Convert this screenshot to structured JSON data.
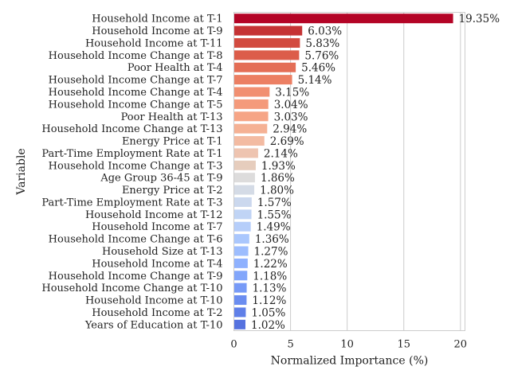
{
  "chart_data": {
    "type": "bar",
    "orientation": "horizontal",
    "xlabel": "Normalized Importance (%)",
    "ylabel": "Variable",
    "xlim": [
      0,
      20.4
    ],
    "xticks": [
      0,
      5,
      10,
      15,
      20
    ],
    "grid": "vertical",
    "colormap": "coolwarm (red for highest, blue for lowest)",
    "categories": [
      "Household Income at T-1",
      "Household Income at T-9",
      "Household Income at T-11",
      "Household Income Change at T-8",
      "Poor Health at T-4",
      "Household Income Change at T-7",
      "Household Income Change at T-4",
      "Household Income Change at T-5",
      "Poor Health at T-13",
      "Household Income Change at T-13",
      "Energy Price at T-1",
      "Part-Time Employment Rate at T-1",
      "Household Income Change at T-3",
      "Age Group 36-45 at T-9",
      "Energy Price at T-2",
      "Part-Time Employment Rate at T-3",
      "Household Income at T-12",
      "Household Income at T-7",
      "Household Income Change at T-6",
      "Household Size at T-13",
      "Household Income at T-4",
      "Household Income Change at T-9",
      "Household Income Change at T-10",
      "Household Income at T-10",
      "Household Income at T-2",
      "Years of Education at T-10"
    ],
    "values": [
      19.35,
      6.03,
      5.83,
      5.76,
      5.46,
      5.14,
      3.15,
      3.04,
      3.03,
      2.94,
      2.69,
      2.14,
      1.93,
      1.86,
      1.8,
      1.57,
      1.55,
      1.49,
      1.36,
      1.27,
      1.22,
      1.18,
      1.13,
      1.12,
      1.05,
      1.02
    ],
    "value_labels": [
      "19.35%",
      "6.03%",
      "5.83%",
      "5.76%",
      "5.46%",
      "5.14%",
      "3.15%",
      "3.04%",
      "3.03%",
      "2.94%",
      "2.69%",
      "2.14%",
      "1.93%",
      "1.86%",
      "1.80%",
      "1.57%",
      "1.55%",
      "1.49%",
      "1.36%",
      "1.27%",
      "1.22%",
      "1.18%",
      "1.13%",
      "1.12%",
      "1.05%",
      "1.02%"
    ],
    "colors": [
      "#b40426",
      "#c53334",
      "#d24b40",
      "#dc5d4a",
      "#e46e56",
      "#ec7f63",
      "#f18f71",
      "#f49a7b",
      "#f6a586",
      "#f5b194",
      "#f3bba2",
      "#eec4b0",
      "#e6cdbd",
      "#dddcdc",
      "#d4dbe6",
      "#cbd8ee",
      "#c0d4f5",
      "#b6cefa",
      "#aac7fd",
      "#9dbdfe",
      "#8fb1fe",
      "#82a6fb",
      "#779af7",
      "#6b8df0",
      "#5f7fe8",
      "#5572df"
    ]
  }
}
